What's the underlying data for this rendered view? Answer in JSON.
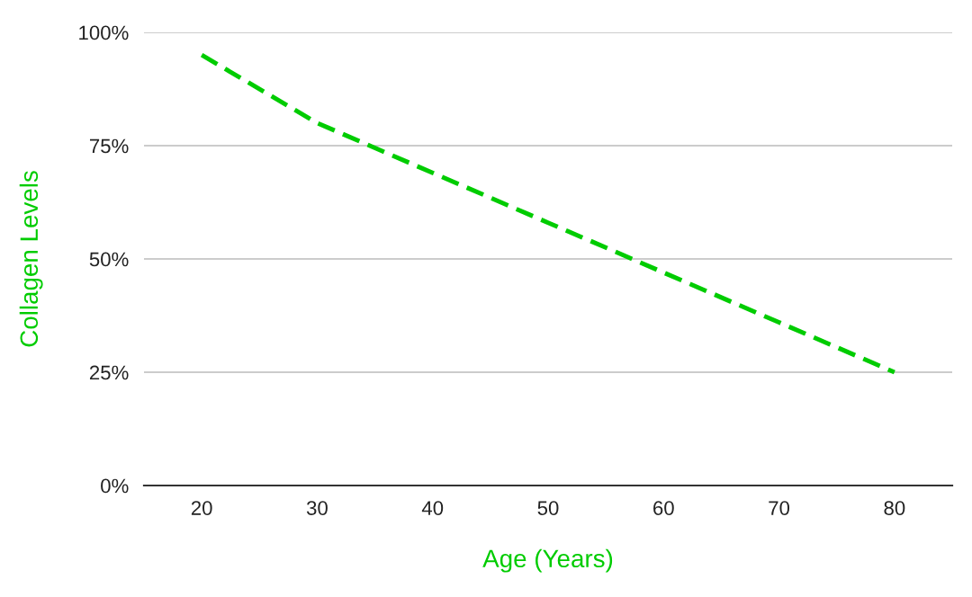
{
  "chart_data": {
    "type": "line",
    "xlabel": "Age (Years)",
    "ylabel": "Collagen Levels",
    "categories": [
      "20",
      "30",
      "40",
      "50",
      "60",
      "70",
      "80"
    ],
    "series": [
      {
        "color": "#00cc00",
        "values": [
          95,
          80,
          69,
          58,
          47,
          36,
          25
        ]
      }
    ],
    "ylim": [
      0,
      100
    ],
    "yticks": [
      {
        "value": 0,
        "label": "0%"
      },
      {
        "value": 25,
        "label": "25%"
      },
      {
        "value": 50,
        "label": "50%"
      },
      {
        "value": 75,
        "label": "75%"
      },
      {
        "value": 100,
        "label": "100%"
      }
    ],
    "grid": "y",
    "line_style": "dashed",
    "marker": "none",
    "legend": false
  }
}
